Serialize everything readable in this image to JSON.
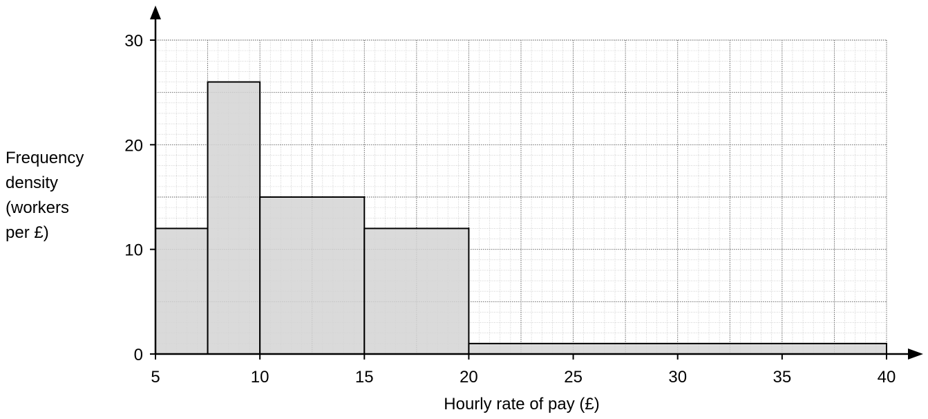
{
  "chart_data": {
    "type": "bar",
    "subtype": "histogram",
    "title": "",
    "xlabel": "Hourly rate of pay (£)",
    "ylabel_lines": [
      "Frequency",
      "density",
      "(workers",
      "per £)"
    ],
    "xlim": [
      5,
      40
    ],
    "ylim": [
      0,
      30
    ],
    "x_ticks": [
      5,
      10,
      15,
      20,
      25,
      30,
      35,
      40
    ],
    "y_ticks": [
      0,
      10,
      20,
      30
    ],
    "bins": [
      {
        "from": 5,
        "to": 7.5,
        "frequency_density": 12
      },
      {
        "from": 7.5,
        "to": 10,
        "frequency_density": 26
      },
      {
        "from": 10,
        "to": 15,
        "frequency_density": 15
      },
      {
        "from": 15,
        "to": 20,
        "frequency_density": 12
      },
      {
        "from": 20,
        "to": 40,
        "frequency_density": 1
      }
    ],
    "grid": true,
    "bar_color": "#d3d3d3",
    "edge_color": "#000000"
  }
}
